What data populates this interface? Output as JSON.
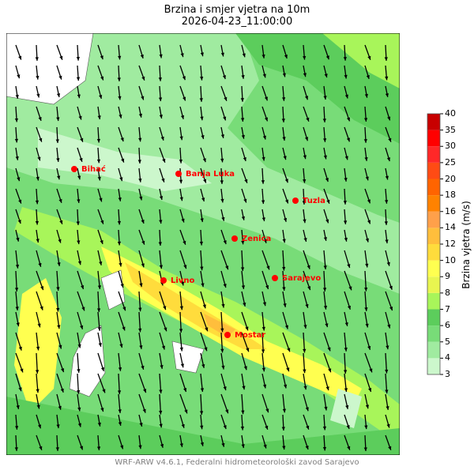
{
  "title": "Brzina i smjer vjetra na 10m",
  "subtitle": "2026-04-23_11:00:00",
  "footer": "WRF-ARW v4.6.1, Federalni hidrometeorološki zavod Sarajevo",
  "colorbar": {
    "label": "Brzina vjetra (m/s)",
    "levels": [
      "3",
      "4",
      "5",
      "6",
      "7",
      "8",
      "9",
      "10",
      "12",
      "14",
      "16",
      "18",
      "20",
      "25",
      "30",
      "35",
      "40"
    ],
    "colors": [
      "#ccf7cc",
      "#a0eba0",
      "#78dc78",
      "#5ccd5c",
      "#a8f55a",
      "#e8f550",
      "#ffff50",
      "#ffdc3c",
      "#ffbe3c",
      "#ffa04a",
      "#ff8200",
      "#ff6400",
      "#ff4b14",
      "#ff2828",
      "#ff0000",
      "#c80000"
    ]
  },
  "cities": [
    {
      "name": "Bihać"
    },
    {
      "name": "Banja Luka"
    },
    {
      "name": "Tuzla"
    },
    {
      "name": "Zenica"
    },
    {
      "name": "Livno"
    },
    {
      "name": "Sarajevo"
    },
    {
      "name": "Mostar"
    }
  ],
  "wind_direction": "predominantly northerly (arrows pointing south)",
  "city_color": "#ff0000"
}
